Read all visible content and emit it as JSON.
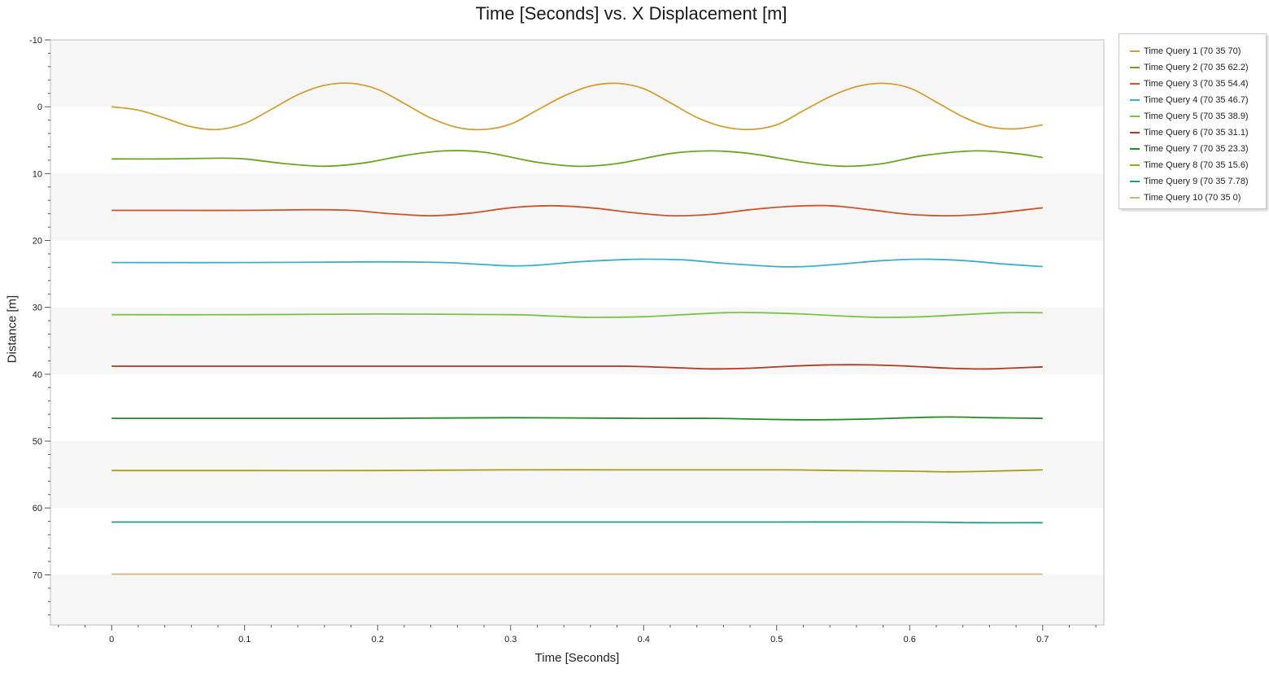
{
  "chart_data": {
    "type": "line",
    "title": "Time [Seconds] vs. X Displacement [m]",
    "xlabel": "Time [Seconds]",
    "ylabel": "Distance [m]",
    "xlim": [
      -0.046,
      0.746
    ],
    "ylim": [
      -10,
      77.5
    ],
    "y_inverted": true,
    "xticks": [
      0,
      0.1,
      0.2,
      0.3,
      0.4,
      0.5,
      0.6,
      0.7
    ],
    "yticks": [
      -10,
      0,
      10,
      20,
      30,
      40,
      50,
      60,
      70
    ],
    "grid": "alternating horizontal bands",
    "legend_position": "outside-right-top",
    "series": [
      {
        "name": "Time Query 1 (70 35 70)",
        "color": "#D4A030",
        "x": [
          0,
          0.02,
          0.04,
          0.06,
          0.08,
          0.1,
          0.12,
          0.14,
          0.16,
          0.18,
          0.2,
          0.22,
          0.24,
          0.26,
          0.28,
          0.3,
          0.32,
          0.34,
          0.36,
          0.38,
          0.4,
          0.42,
          0.44,
          0.46,
          0.48,
          0.5,
          0.52,
          0.54,
          0.56,
          0.58,
          0.6,
          0.62,
          0.64,
          0.66,
          0.68,
          0.7
        ],
        "y": [
          0,
          0.5,
          1.7,
          3.0,
          3.4,
          2.5,
          0.4,
          -1.8,
          -3.2,
          -3.5,
          -2.6,
          -0.5,
          1.7,
          3.1,
          3.4,
          2.6,
          0.5,
          -1.6,
          -3.1,
          -3.5,
          -2.7,
          -0.6,
          1.6,
          3.0,
          3.4,
          2.7,
          0.6,
          -1.5,
          -3.0,
          -3.5,
          -2.8,
          -0.7,
          1.5,
          3.0,
          3.3,
          2.7
        ]
      },
      {
        "name": "Time Query 2 (70 35 62.2)",
        "color": "#6AA820",
        "x": [
          0,
          0.04,
          0.08,
          0.1,
          0.13,
          0.16,
          0.19,
          0.22,
          0.25,
          0.28,
          0.32,
          0.35,
          0.38,
          0.42,
          0.45,
          0.48,
          0.52,
          0.55,
          0.58,
          0.61,
          0.65,
          0.68,
          0.7
        ],
        "y": [
          7.8,
          7.8,
          7.7,
          7.8,
          8.5,
          8.9,
          8.4,
          7.3,
          6.6,
          6.8,
          8.3,
          8.9,
          8.5,
          7.0,
          6.6,
          7.0,
          8.3,
          8.9,
          8.5,
          7.3,
          6.6,
          7.0,
          7.6
        ]
      },
      {
        "name": "Time Query 3 (70 35 54.4)",
        "color": "#D0542A",
        "x": [
          0,
          0.05,
          0.1,
          0.15,
          0.18,
          0.21,
          0.24,
          0.27,
          0.3,
          0.33,
          0.36,
          0.39,
          0.42,
          0.45,
          0.48,
          0.51,
          0.54,
          0.57,
          0.6,
          0.63,
          0.66,
          0.7
        ],
        "y": [
          15.5,
          15.5,
          15.5,
          15.4,
          15.5,
          16.0,
          16.3,
          15.9,
          15.1,
          14.8,
          15.1,
          15.8,
          16.3,
          16.1,
          15.4,
          14.9,
          14.8,
          15.4,
          16.1,
          16.3,
          16.0,
          15.1
        ]
      },
      {
        "name": "Time Query 4 (70 35 46.7)",
        "color": "#3AB0D0",
        "x": [
          0,
          0.1,
          0.2,
          0.25,
          0.28,
          0.3,
          0.32,
          0.35,
          0.38,
          0.4,
          0.43,
          0.46,
          0.5,
          0.52,
          0.55,
          0.58,
          0.61,
          0.64,
          0.67,
          0.7
        ],
        "y": [
          23.3,
          23.3,
          23.2,
          23.3,
          23.6,
          23.8,
          23.7,
          23.2,
          22.9,
          22.8,
          22.9,
          23.4,
          23.9,
          23.9,
          23.5,
          23.0,
          22.8,
          23.0,
          23.5,
          23.9
        ]
      },
      {
        "name": "Time Query 5 (70 35 38.9)",
        "color": "#7CC448",
        "x": [
          0,
          0.1,
          0.2,
          0.3,
          0.33,
          0.36,
          0.4,
          0.43,
          0.46,
          0.49,
          0.52,
          0.55,
          0.58,
          0.61,
          0.64,
          0.67,
          0.7
        ],
        "y": [
          31.1,
          31.1,
          31.0,
          31.1,
          31.3,
          31.5,
          31.4,
          31.1,
          30.8,
          30.8,
          31.0,
          31.3,
          31.5,
          31.4,
          31.1,
          30.8,
          30.8
        ]
      },
      {
        "name": "Time Query 6 (70 35 31.1)",
        "color": "#B03A20",
        "x": [
          0,
          0.1,
          0.2,
          0.3,
          0.38,
          0.42,
          0.45,
          0.48,
          0.51,
          0.54,
          0.57,
          0.6,
          0.63,
          0.66,
          0.7
        ],
        "y": [
          38.8,
          38.8,
          38.8,
          38.8,
          38.8,
          39.0,
          39.2,
          39.1,
          38.8,
          38.6,
          38.6,
          38.8,
          39.1,
          39.2,
          38.9
        ]
      },
      {
        "name": "Time Query 7 (70 35 23.3)",
        "color": "#1A9020",
        "x": [
          0,
          0.1,
          0.2,
          0.3,
          0.4,
          0.45,
          0.48,
          0.51,
          0.54,
          0.57,
          0.6,
          0.63,
          0.66,
          0.7
        ],
        "y": [
          46.6,
          46.6,
          46.6,
          46.5,
          46.6,
          46.6,
          46.7,
          46.8,
          46.8,
          46.7,
          46.5,
          46.4,
          46.5,
          46.6
        ]
      },
      {
        "name": "Time Query 8 (70 35 15.6)",
        "color": "#A8A010",
        "x": [
          0,
          0.1,
          0.2,
          0.3,
          0.4,
          0.5,
          0.55,
          0.6,
          0.63,
          0.66,
          0.7
        ],
        "y": [
          54.4,
          54.4,
          54.4,
          54.3,
          54.3,
          54.3,
          54.4,
          54.5,
          54.6,
          54.5,
          54.3
        ]
      },
      {
        "name": "Time Query 9 (70 35 7.78)",
        "color": "#1AA088",
        "x": [
          0,
          0.1,
          0.2,
          0.3,
          0.4,
          0.5,
          0.6,
          0.65,
          0.7
        ],
        "y": [
          62.1,
          62.1,
          62.1,
          62.1,
          62.1,
          62.1,
          62.1,
          62.2,
          62.2
        ]
      },
      {
        "name": "Time Query 10 (70 35 0)",
        "color": "#D8B07A",
        "x": [
          0,
          0.1,
          0.2,
          0.3,
          0.4,
          0.5,
          0.6,
          0.7
        ],
        "y": [
          69.9,
          69.9,
          69.9,
          69.9,
          69.9,
          69.9,
          69.9,
          69.9
        ]
      }
    ]
  }
}
